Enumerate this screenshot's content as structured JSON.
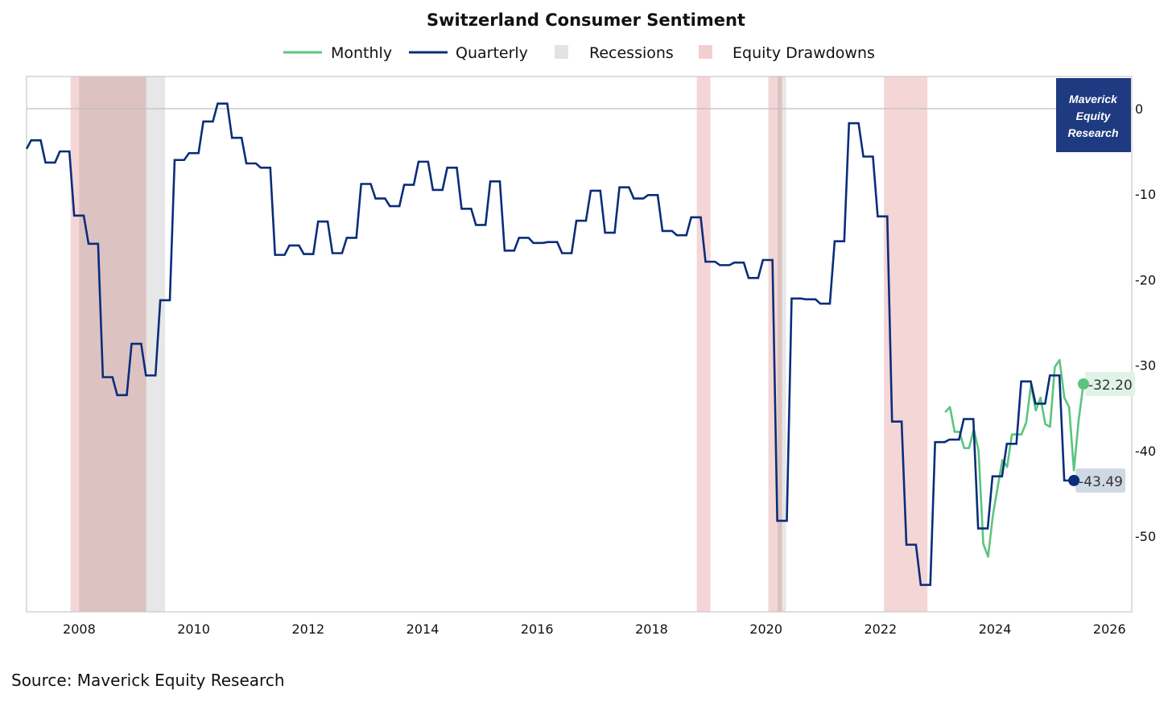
{
  "chart_data": {
    "type": "line",
    "title": "Switzerland Consumer Sentiment",
    "xlabel": "",
    "ylabel": "",
    "xlim": [
      2007.08,
      2026.39
    ],
    "ylim": [
      -58.85,
      3.77
    ],
    "x_ticks": [
      "2008",
      "2010",
      "2012",
      "2014",
      "2016",
      "2018",
      "2020",
      "2022",
      "2024",
      "2026"
    ],
    "y_ticks": [
      0,
      -10,
      -20,
      -30,
      -40,
      -50
    ],
    "grid": "zero-line only",
    "legend": {
      "placement": "top-center",
      "items": [
        "Monthly",
        "Quarterly",
        "Recessions",
        "Equity Drawdowns"
      ]
    },
    "series": [
      {
        "name": "Quarterly",
        "color": "#0a2d7a",
        "initial_point": [
          2007.08,
          -4.7
        ],
        "start_year": 2007.16,
        "step_years": 0.2507,
        "hold_years": 0.167,
        "values": [
          -3.7,
          -6.3,
          -5.0,
          -12.5,
          -15.8,
          -31.4,
          -33.5,
          -27.5,
          -31.2,
          -22.4,
          -6.0,
          -5.2,
          -1.5,
          0.6,
          -3.4,
          -6.4,
          -6.9,
          -17.1,
          -16.0,
          -17.0,
          -13.2,
          -16.9,
          -15.1,
          -8.8,
          -10.5,
          -11.4,
          -8.9,
          -6.2,
          -9.5,
          -6.9,
          -11.7,
          -13.6,
          -8.5,
          -16.6,
          -15.1,
          -15.7,
          -15.6,
          -16.9,
          -13.1,
          -9.6,
          -14.5,
          -9.2,
          -10.5,
          -10.1,
          -14.3,
          -14.8,
          -12.7,
          -17.9,
          -18.3,
          -18.0,
          -19.8,
          -17.7,
          -48.2,
          -22.2,
          -22.3,
          -22.8,
          -15.5,
          -1.7,
          -5.6,
          -12.6,
          -36.6,
          -51.0,
          -55.7,
          -39.0,
          -38.7,
          -36.3,
          -49.1,
          -43.0,
          -39.2,
          -31.9,
          -34.5,
          -31.2,
          -43.49
        ],
        "end_year": 2025.38,
        "last_label": "-43.49",
        "label_bg": "#cfd9e6"
      },
      {
        "name": "Monthly",
        "color": "#5bc47f",
        "start_year": 2023.13,
        "step_years": 0.0833,
        "values": [
          -35.5,
          -34.9,
          -37.8,
          -37.8,
          -39.7,
          -39.7,
          -37.5,
          -40.0,
          -50.9,
          -52.4,
          -47.6,
          -44.3,
          -41.1,
          -41.9,
          -38.1,
          -38.1,
          -38.1,
          -36.7,
          -32.3,
          -35.3,
          -33.8,
          -36.9,
          -37.2,
          -30.2,
          -29.4,
          -33.8,
          -34.9,
          -42.3,
          -36.4,
          -32.2
        ],
        "last_label": "-32.20",
        "label_bg": "#dff3e6"
      }
    ],
    "bands": [
      {
        "type": "Equity Drawdowns",
        "color": "#f2cfcf",
        "from": 2007.85,
        "to": 2009.17
      },
      {
        "type": "Recessions",
        "color": "#e3e3e3",
        "from": 2008.0,
        "to": 2009.5
      },
      {
        "type": "Equity Drawdowns",
        "color": "#f2cfcf",
        "from": 2018.79,
        "to": 2019.03
      },
      {
        "type": "Equity Drawdowns",
        "color": "#f2cfcf",
        "from": 2020.04,
        "to": 2020.28
      },
      {
        "type": "Recessions",
        "color": "#e3e3e3",
        "from": 2020.2,
        "to": 2020.35
      },
      {
        "type": "Equity Drawdowns",
        "color": "#f2cfcf",
        "from": 2022.06,
        "to": 2022.82
      }
    ]
  },
  "logo": {
    "lines": [
      "Maverick",
      "Equity",
      "Research"
    ],
    "color": "#1e3a80"
  },
  "source": "Source: Maverick Equity Research"
}
